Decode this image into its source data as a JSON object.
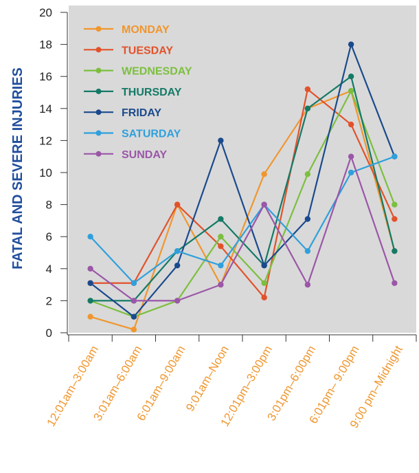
{
  "chart_data": {
    "type": "line",
    "ylabel": "FATAL AND SEVERE INJURIES",
    "xlabel": "",
    "ylim": [
      0,
      20
    ],
    "yticks": [
      0,
      2,
      4,
      6,
      8,
      10,
      12,
      14,
      16,
      18,
      20
    ],
    "grid": false,
    "legend_position": "top-left",
    "background_color": "#d9d9d9",
    "ylabel_color": "#1f4e9c",
    "category_color": "#f0962e",
    "categories": [
      "12:01am–3:00am",
      "3:01am–6:00am",
      "6:01am–9:00am",
      "9:01am–Noon",
      "12:01pm–3:00pm",
      "3:01pm–6:00pm",
      "6:01pm– 9:00pm",
      "9:00 pm–Midnight"
    ],
    "series": [
      {
        "name": "MONDAY",
        "color": "#f0962e",
        "values": [
          1,
          0.2,
          8,
          3,
          9.9,
          14,
          15.1,
          5.1
        ]
      },
      {
        "name": "TUESDAY",
        "color": "#e2522a",
        "values": [
          3.1,
          3.1,
          8,
          5.4,
          2.2,
          15.2,
          13,
          7.1
        ]
      },
      {
        "name": "WEDNESDAY",
        "color": "#7cbf3f",
        "values": [
          2,
          1,
          2,
          6,
          3.1,
          9.9,
          15.1,
          8
        ]
      },
      {
        "name": "THURSDAY",
        "color": "#147a66",
        "values": [
          2,
          2,
          5.1,
          7.1,
          4.2,
          14,
          16,
          5.1
        ]
      },
      {
        "name": "FRIDAY",
        "color": "#1a4a8c",
        "values": [
          3.1,
          1,
          4.2,
          12,
          4.2,
          7.1,
          18,
          11
        ]
      },
      {
        "name": "SATURDAY",
        "color": "#2fa0dc",
        "values": [
          6,
          3.1,
          5.1,
          4.2,
          8,
          5.1,
          10,
          11
        ]
      },
      {
        "name": "SUNDAY",
        "color": "#9b56a8",
        "values": [
          4,
          2,
          2,
          3,
          8,
          3,
          11,
          3.1
        ]
      }
    ]
  }
}
